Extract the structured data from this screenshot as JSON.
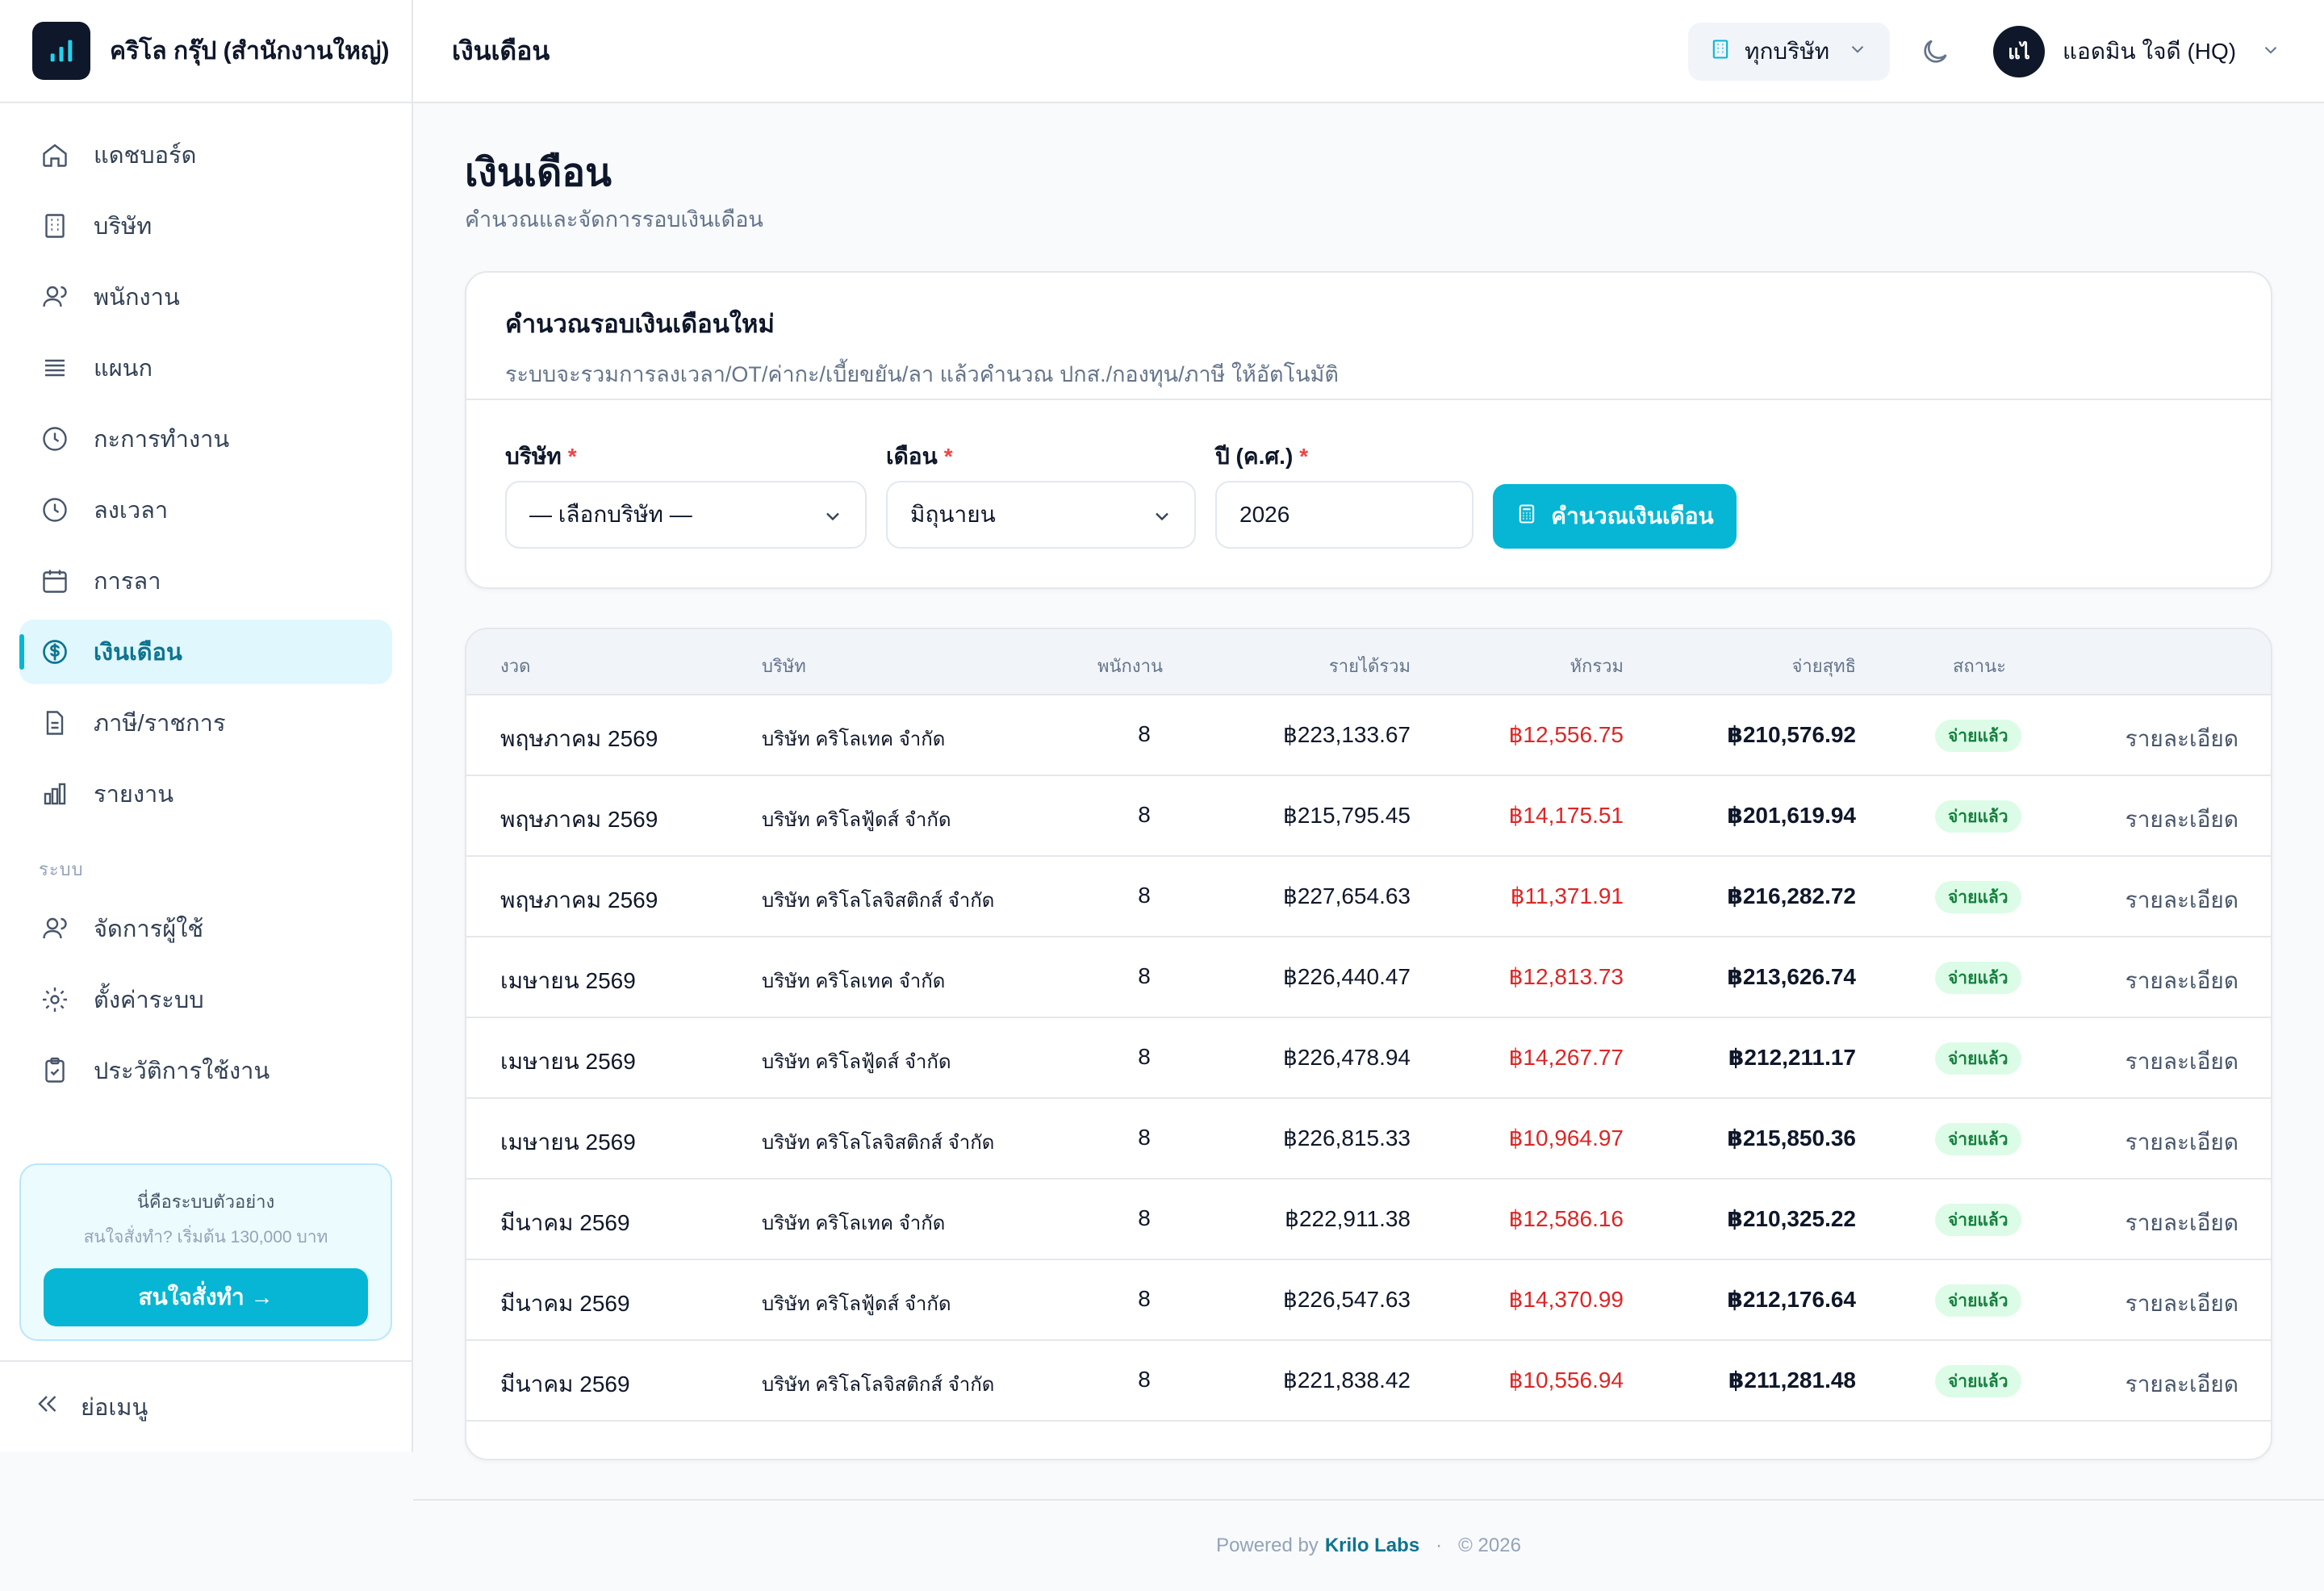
{
  "brand": {
    "name": "คริโล กรุ๊ป (สำนักงานใหญ่)"
  },
  "topbar": {
    "title": "เงินเดือน",
    "company_filter": "ทุกบริษัท",
    "user_initials": "แไ",
    "user_name": "แอดมิน ใจดี (HQ)"
  },
  "sidebar": {
    "items": [
      {
        "label": "แดชบอร์ด",
        "icon": "home-icon"
      },
      {
        "label": "บริษัท",
        "icon": "building-icon"
      },
      {
        "label": "พนักงาน",
        "icon": "users-icon"
      },
      {
        "label": "แผนก",
        "icon": "list-icon"
      },
      {
        "label": "กะการทำงาน",
        "icon": "clock-icon"
      },
      {
        "label": "ลงเวลา",
        "icon": "clock-icon"
      },
      {
        "label": "การลา",
        "icon": "calendar-icon"
      },
      {
        "label": "เงินเดือน",
        "icon": "dollar-icon",
        "active": true
      },
      {
        "label": "ภาษี/ราชการ",
        "icon": "document-icon"
      },
      {
        "label": "รายงาน",
        "icon": "chart-icon"
      }
    ],
    "section_label": "ระบบ",
    "system_items": [
      {
        "label": "จัดการผู้ใช้",
        "icon": "user-cog-icon"
      },
      {
        "label": "ตั้งค่าระบบ",
        "icon": "gear-icon"
      },
      {
        "label": "ประวัติการใช้งาน",
        "icon": "clipboard-icon"
      }
    ],
    "promo": {
      "line1": "นี่คือระบบตัวอย่าง",
      "line2": "สนใจสั่งทำ? เริ่มต้น 130,000 บาท",
      "button": "สนใจสั่งทำ →"
    },
    "collapse_label": "ย่อเมนู"
  },
  "page": {
    "title": "เงินเดือน",
    "subtitle": "คำนวณและจัดการรอบเงินเดือน"
  },
  "calc": {
    "title": "คำนวณรอบเงินเดือนใหม่",
    "description": "ระบบจะรวมการลงเวลา/OT/ค่ากะ/เบี้ยขยัน/ลา แล้วคำนวณ ปกส./กองทุน/ภาษี ให้อัตโนมัติ",
    "company_label": "บริษัท",
    "company_value": "— เลือกบริษัท —",
    "month_label": "เดือน",
    "month_value": "มิถุนายน",
    "year_label": "ปี (ค.ศ.)",
    "year_value": "2026",
    "required_mark": "*",
    "button": "คำนวณเงินเดือน"
  },
  "table": {
    "headers": {
      "period": "งวด",
      "company": "บริษัท",
      "employees": "พนักงาน",
      "income": "รายได้รวม",
      "deduction": "หักรวม",
      "net": "จ่ายสุทธิ",
      "status": "สถานะ"
    },
    "rows": [
      {
        "period": "พฤษภาคม 2569",
        "company": "บริษัท คริโลเทค จำกัด",
        "employees": "8",
        "income": "฿223,133.67",
        "deduction": "฿12,556.75",
        "net": "฿210,576.92",
        "status": "จ่ายแล้ว",
        "action": "รายละเอียด"
      },
      {
        "period": "พฤษภาคม 2569",
        "company": "บริษัท คริโลฟู้ดส์ จำกัด",
        "employees": "8",
        "income": "฿215,795.45",
        "deduction": "฿14,175.51",
        "net": "฿201,619.94",
        "status": "จ่ายแล้ว",
        "action": "รายละเอียด"
      },
      {
        "period": "พฤษภาคม 2569",
        "company": "บริษัท คริโลโลจิสติกส์ จำกัด",
        "employees": "8",
        "income": "฿227,654.63",
        "deduction": "฿11,371.91",
        "net": "฿216,282.72",
        "status": "จ่ายแล้ว",
        "action": "รายละเอียด"
      },
      {
        "period": "เมษายน 2569",
        "company": "บริษัท คริโลเทค จำกัด",
        "employees": "8",
        "income": "฿226,440.47",
        "deduction": "฿12,813.73",
        "net": "฿213,626.74",
        "status": "จ่ายแล้ว",
        "action": "รายละเอียด"
      },
      {
        "period": "เมษายน 2569",
        "company": "บริษัท คริโลฟู้ดส์ จำกัด",
        "employees": "8",
        "income": "฿226,478.94",
        "deduction": "฿14,267.77",
        "net": "฿212,211.17",
        "status": "จ่ายแล้ว",
        "action": "รายละเอียด"
      },
      {
        "period": "เมษายน 2569",
        "company": "บริษัท คริโลโลจิสติกส์ จำกัด",
        "employees": "8",
        "income": "฿226,815.33",
        "deduction": "฿10,964.97",
        "net": "฿215,850.36",
        "status": "จ่ายแล้ว",
        "action": "รายละเอียด"
      },
      {
        "period": "มีนาคม 2569",
        "company": "บริษัท คริโลเทค จำกัด",
        "employees": "8",
        "income": "฿222,911.38",
        "deduction": "฿12,586.16",
        "net": "฿210,325.22",
        "status": "จ่ายแล้ว",
        "action": "รายละเอียด"
      },
      {
        "period": "มีนาคม 2569",
        "company": "บริษัท คริโลฟู้ดส์ จำกัด",
        "employees": "8",
        "income": "฿226,547.63",
        "deduction": "฿14,370.99",
        "net": "฿212,176.64",
        "status": "จ่ายแล้ว",
        "action": "รายละเอียด"
      },
      {
        "period": "มีนาคม 2569",
        "company": "บริษัท คริโลโลจิสติกส์ จำกัด",
        "employees": "8",
        "income": "฿221,838.42",
        "deduction": "฿10,556.94",
        "net": "฿211,281.48",
        "status": "จ่ายแล้ว",
        "action": "รายละเอียด"
      }
    ]
  },
  "footer": {
    "powered_by": "Powered by",
    "brand": "Krilo Labs",
    "separator": "·",
    "copyright": "© 2026"
  },
  "colors": {
    "accent": "#06b6d4",
    "brand_dark": "#0f172a",
    "deduction": "#dc2626",
    "status_paid_bg": "#dcfce7",
    "status_paid_text": "#15803d"
  }
}
